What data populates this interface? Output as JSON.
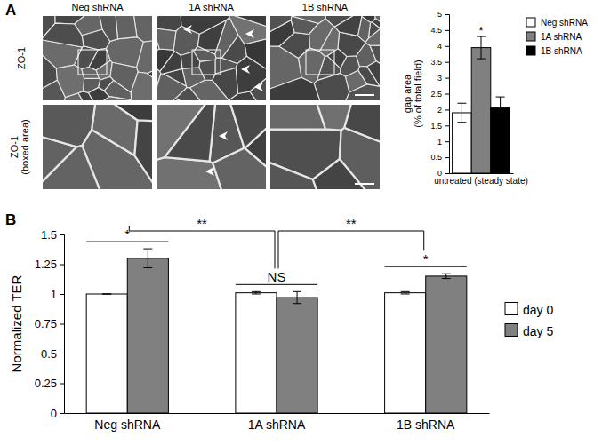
{
  "figure": {
    "panels": [
      "A",
      "B"
    ],
    "image_columns": [
      "Neg shRNA",
      "1A shRNA",
      "1B shRNA"
    ],
    "image_rows": [
      [
        "ZO-1"
      ],
      [
        "ZO-1",
        "(boxed area)"
      ]
    ]
  },
  "chart_data": [
    {
      "type": "bar",
      "y_label": [
        "gap area",
        "(% of total field)"
      ],
      "categories": [
        "untreated (steady state)"
      ],
      "series": [
        {
          "name": "Neg shRNA",
          "color": "#ffffff",
          "values": [
            1.9
          ],
          "errors": [
            0.3
          ]
        },
        {
          "name": "1A shRNA",
          "color": "#808080",
          "values": [
            3.95
          ],
          "errors": [
            0.35
          ]
        },
        {
          "name": "1B shRNA",
          "color": "#000000",
          "values": [
            2.05
          ],
          "errors": [
            0.35
          ]
        }
      ],
      "ylim": [
        0,
        5
      ],
      "yticks": [
        0,
        0.5,
        1,
        1.5,
        2,
        2.5,
        3,
        3.5,
        4,
        4.5,
        5
      ],
      "grid": false,
      "legend": "top right",
      "annotations": [
        {
          "text": "*",
          "series": "1A shRNA"
        }
      ]
    },
    {
      "type": "bar",
      "y_label": "Normalized TER",
      "categories": [
        "Neg shRNA",
        "1A shRNA",
        "1B shRNA"
      ],
      "series": [
        {
          "name": "day 0",
          "color": "#ffffff",
          "values": [
            1,
            1.01,
            1.01
          ],
          "errors": [
            0,
            0.01,
            0.01
          ]
        },
        {
          "name": "day 5",
          "color": "#808080",
          "values": [
            1.3,
            0.97,
            1.15
          ],
          "errors": [
            0.08,
            0.05,
            0.02
          ]
        }
      ],
      "ylim": [
        0,
        1.5
      ],
      "yticks": [
        0,
        0.25,
        0.5,
        0.75,
        1,
        1.25,
        1.5
      ],
      "grid": false,
      "legend": "right",
      "annotations": [
        {
          "text": "*",
          "category": "Neg shRNA"
        },
        {
          "text": "NS",
          "category": "1A shRNA"
        },
        {
          "text": "*",
          "category": "1B shRNA"
        },
        {
          "text": "**",
          "categories": [
            "Neg shRNA",
            "1A shRNA"
          ]
        },
        {
          "text": "**",
          "categories": [
            "1A shRNA",
            "1B shRNA"
          ]
        }
      ]
    }
  ]
}
